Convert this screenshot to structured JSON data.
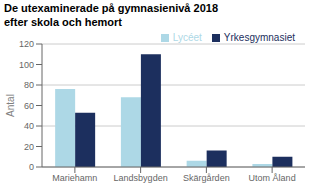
{
  "chart_data": {
    "type": "bar",
    "title": "De utexaminerade på gymnasienivå 2018",
    "subtitle": "efter skola och hemort",
    "y_label": "Antal",
    "categories": [
      "Mariehamn",
      "Landsbygden",
      "Skärgården",
      "Utom Åland"
    ],
    "series": [
      {
        "name": "Lycéet",
        "color": "#add8e6",
        "values": [
          76,
          68,
          6,
          3
        ]
      },
      {
        "name": "Yrkesgymnasiet",
        "color": "#1c2f5e",
        "values": [
          53,
          110,
          16,
          10
        ]
      }
    ],
    "ylim": [
      0,
      120
    ],
    "yticks": [
      0,
      20,
      40,
      60,
      80,
      100,
      120
    ],
    "grid": true,
    "legend": "upper right"
  }
}
